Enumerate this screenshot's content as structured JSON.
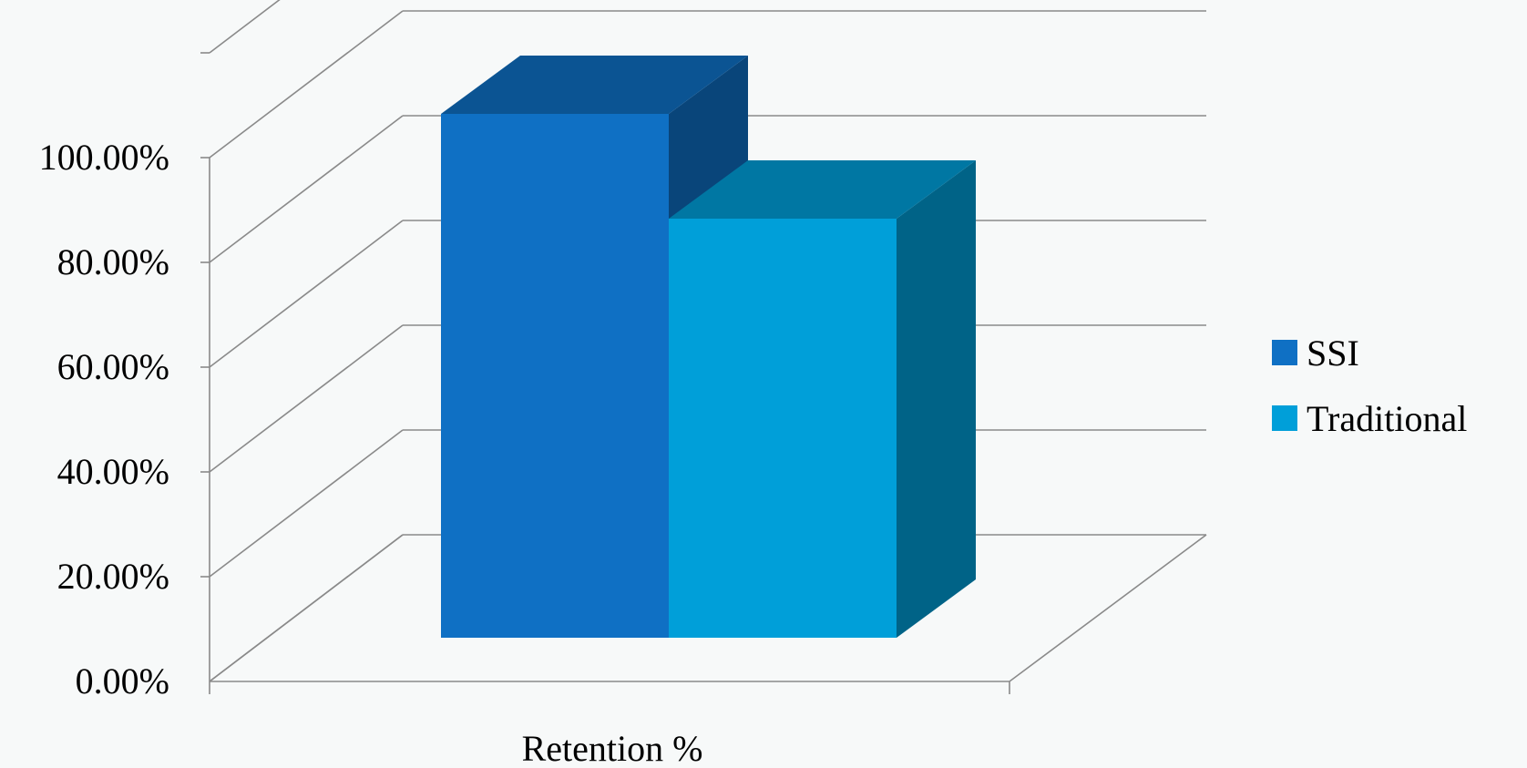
{
  "chart_data": {
    "type": "bar",
    "style": "3d-clustered-column",
    "categories": [
      "Retention %"
    ],
    "series": [
      {
        "name": "SSI",
        "values": [
          1.0
        ],
        "color": "#0f70c4"
      },
      {
        "name": "Traditional",
        "values": [
          0.8
        ],
        "color": "#009fd9"
      }
    ],
    "ylim": [
      0,
      1
    ],
    "yticks": [
      "0.00%",
      "20.00%",
      "40.00%",
      "60.00%",
      "80.00%",
      "100.00%"
    ],
    "grid": true,
    "legend_position": "right"
  }
}
